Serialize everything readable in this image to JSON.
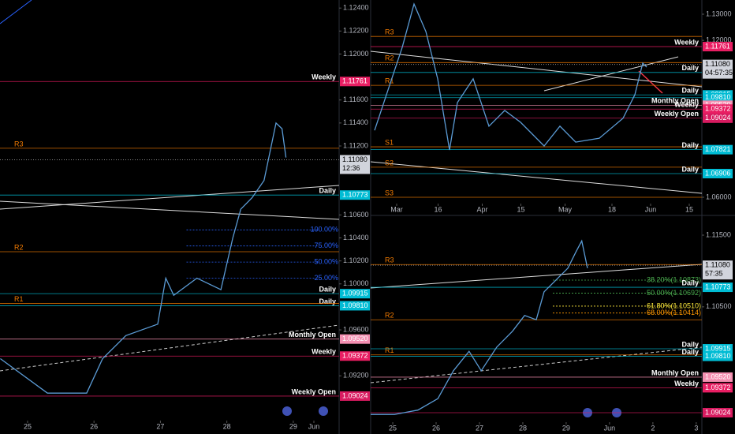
{
  "chart_data": [
    {
      "type": "line",
      "color": "#5b9bd5",
      "x": [
        24.59,
        25.3,
        25.89,
        26.13,
        26.48,
        26.96,
        27.08,
        27.2,
        27.55,
        27.91,
        28.09,
        28.21,
        28.38,
        28.56,
        28.74,
        28.83,
        28.89
      ],
      "values": [
        1.0935,
        1.0905,
        1.0905,
        1.0935,
        1.0955,
        1.0965,
        1.1005,
        1.099,
        1.1005,
        1.0995,
        1.104,
        1.1065,
        1.1075,
        1.109,
        1.114,
        1.1135,
        1.111
      ],
      "xlim": [
        24.585,
        29.69
      ],
      "ylim": [
        1.089,
        1.1247
      ],
      "xticks": [
        25,
        26,
        27,
        28,
        29,
        {
          "value": 29.31,
          "label": "Jun"
        }
      ],
      "yticks": [
        {
          "value": 1.124,
          "label": "1.12400"
        },
        {
          "value": 1.122,
          "label": "1.12200"
        },
        {
          "value": 1.12,
          "label": "1.12000"
        },
        {
          "value": 1.116,
          "label": "1.11600"
        },
        {
          "value": 1.114,
          "label": "1.11400"
        },
        {
          "value": 1.112,
          "label": "1.11200"
        },
        {
          "value": 1.106,
          "label": "1.10600"
        },
        {
          "value": 1.104,
          "label": "1.10400"
        },
        {
          "value": 1.102,
          "label": "1.10200"
        },
        {
          "value": 1.1,
          "label": "1.10000"
        },
        {
          "value": 1.096,
          "label": "1.09600"
        },
        {
          "value": 1.092,
          "label": "1.09200"
        }
      ],
      "levels": [
        {
          "name": "Weekly",
          "price": 1.11761,
          "color": "#e91e63",
          "tag": true
        },
        {
          "name": "R3",
          "price": 1.1118,
          "color": "#f57c00",
          "tag": false
        },
        {
          "name": "Daily",
          "price": 1.10773,
          "color": "#00bcd4",
          "tag": true
        },
        {
          "name": "R2",
          "price": 1.1028,
          "color": "#f57c00",
          "tag": false
        },
        {
          "name": "Daily",
          "price": 1.09915,
          "color": "#00bcd4",
          "tag": true
        },
        {
          "name": "Daily",
          "price": {
            "value": 1.0981,
            "label": "1.09810"
          },
          "color": "#00bcd4",
          "tag": true
        },
        {
          "name": "R1",
          "price": 1.0983,
          "color": "#f57c00",
          "tag": false
        },
        {
          "name": "Monthly Open",
          "price": {
            "value": 1.0952,
            "label": "1.09520"
          },
          "color": "#f48fb1",
          "tag": true
        },
        {
          "name": "Weekly",
          "price": 1.09372,
          "color": "#e91e63",
          "tag": true
        },
        {
          "name": "Weekly Open",
          "price": 1.09024,
          "color": "#d81b60",
          "tag": true
        }
      ],
      "fib_levels": [
        {
          "name": "100.00%",
          "price": 1.1047,
          "color": "#2962ff"
        },
        {
          "name": "75.00%",
          "price": 1.1033,
          "color": "#2962ff"
        },
        {
          "name": "50.00%",
          "price": 1.1019,
          "color": "#2962ff"
        },
        {
          "name": "25.00%",
          "price": 1.1005,
          "color": "#2962ff"
        }
      ],
      "last_price": {
        "value": 1.1108,
        "label": "1.11080"
      },
      "countdown": "12:36"
    },
    {
      "type": "line",
      "color": "#5b9bd5",
      "x": [
        -8,
        -3.71,
        2,
        6.29,
        10.57,
        14.86,
        19.14,
        22,
        27.71,
        33.43,
        39.14,
        44.86,
        53.43,
        59.14,
        64.86,
        73.43,
        82,
        86.29,
        89.14,
        90.57
      ],
      "values": [
        1.0856,
        1.0992,
        1.1173,
        1.1339,
        1.1234,
        1.1053,
        1.0781,
        1.0962,
        1.1053,
        1.0872,
        1.0932,
        1.0887,
        1.0796,
        1.0872,
        1.0811,
        1.0826,
        1.0902,
        1.0992,
        1.1113,
        1.1098
      ],
      "xlim": [
        -9.43,
        110.57
      ],
      "ylim": [
        1.05397,
        1.13543
      ],
      "xticks": [
        {
          "value": 0,
          "label": "Mar"
        },
        {
          "value": 15,
          "label": "16"
        },
        {
          "value": 31,
          "label": "Apr"
        },
        {
          "value": 45,
          "label": "15"
        },
        {
          "value": 61,
          "label": "May"
        },
        {
          "value": 78,
          "label": "18"
        },
        {
          "value": 92,
          "label": "Jun"
        },
        {
          "value": 106,
          "label": "15"
        }
      ],
      "yticks": [
        {
          "value": 1.13,
          "label": "1.13000"
        },
        {
          "value": 1.12,
          "label": "1.12000"
        },
        {
          "value": 1.06,
          "label": "1.06000"
        }
      ],
      "levels": [
        {
          "name": "R3",
          "price": 1.1215,
          "color": "#f57c00",
          "tag": false
        },
        {
          "name": "Weekly",
          "price": 1.11761,
          "color": "#e91e63",
          "tag": true
        },
        {
          "name": "R2",
          "price": 1.1115,
          "color": "#f57c00",
          "tag": false
        },
        {
          "name": "Daily",
          "price": 1.10773,
          "color": "#00bcd4",
          "tag": true
        },
        {
          "name": "R1",
          "price": 1.1028,
          "color": "#f57c00",
          "tag": false
        },
        {
          "name": "Daily",
          "price": 1.09915,
          "color": "#00bcd4",
          "tag": true
        },
        {
          "price": {
            "value": 1.0981,
            "label": "1.09810"
          },
          "color": "#00bcd4",
          "tag": true
        },
        {
          "name": "Monthly Open",
          "price": {
            "value": 1.0952,
            "label": "1.09520"
          },
          "color": "#f48fb1",
          "tag": true
        },
        {
          "name": "Weekly",
          "price": 1.09372,
          "color": "#e91e63",
          "tag": true
        },
        {
          "name": "Weekly Open",
          "price": 1.09024,
          "color": "#d81b60",
          "tag": true
        },
        {
          "name": "S1",
          "price": 1.0793,
          "color": "#f57c00",
          "tag": false
        },
        {
          "name": "Daily",
          "price": 1.07821,
          "color": "#00bcd4",
          "tag": true
        },
        {
          "name": "S2",
          "price": 1.0715,
          "color": "#f57c00",
          "tag": false
        },
        {
          "name": "Daily",
          "price": 1.06906,
          "color": "#00bcd4",
          "tag": true
        },
        {
          "name": "S3",
          "price": 1.06,
          "color": "#f57c00",
          "tag": false
        }
      ],
      "fib_levels": [],
      "last_price": {
        "value": 1.1108,
        "label": "1.11080"
      },
      "countdown": "04:57:35"
    },
    {
      "type": "line",
      "color": "#5b9bd5",
      "x": [
        24.49,
        25.04,
        25.58,
        26.04,
        26.4,
        26.76,
        27.04,
        27.4,
        27.76,
        28.04,
        28.31,
        28.49,
        28.76,
        29.04,
        29.22,
        29.36,
        29.49
      ],
      "values": [
        1.09,
        1.09,
        1.0906,
        1.0922,
        1.0961,
        1.0988,
        1.0961,
        1.0994,
        1.1016,
        1.1038,
        1.1032,
        1.1071,
        1.1087,
        1.1104,
        1.1126,
        1.1142,
        1.1104
      ],
      "xlim": [
        24.49,
        32.13
      ],
      "ylim": [
        1.08837,
        1.11753
      ],
      "xticks": [
        25,
        26,
        27,
        28,
        29,
        {
          "value": 30,
          "label": "Jun"
        },
        {
          "value": 31,
          "label": "2"
        },
        {
          "value": 32,
          "label": "3"
        }
      ],
      "yticks": [
        {
          "value": 1.115,
          "label": "1.11500"
        },
        {
          "value": 1.105,
          "label": "1.10500"
        }
      ],
      "levels": [
        {
          "name": "R3",
          "price": 1.1109,
          "color": "#f57c00",
          "tag": false
        },
        {
          "name": "Daily",
          "price": 1.10773,
          "color": "#00bcd4",
          "tag": true
        },
        {
          "name": "R2",
          "price": 1.1032,
          "color": "#f57c00",
          "tag": false
        },
        {
          "name": "R1",
          "price": 1.0983,
          "color": "#f57c00",
          "tag": false
        },
        {
          "name": "Daily",
          "price": 1.09915,
          "color": "#00bcd4",
          "tag": true
        },
        {
          "name": "Daily",
          "price": {
            "value": 1.0981,
            "label": "1.09810"
          },
          "color": "#00bcd4",
          "tag": true
        },
        {
          "name": "Monthly Open",
          "price": {
            "value": 1.0952,
            "label": "1.09520"
          },
          "color": "#f48fb1",
          "tag": true
        },
        {
          "name": "Weekly",
          "price": 1.09372,
          "color": "#e91e63",
          "tag": true
        },
        {
          "price": 1.09024,
          "color": "#d81b60",
          "tag": true
        }
      ],
      "fib_levels": [
        {
          "name": "38.20%(1.10873)",
          "price": 1.10873,
          "color": "#4caf50"
        },
        {
          "name": "50.00%(1.10692)",
          "price": 1.10692,
          "color": "#4caf50"
        },
        {
          "name": "61.80%(1.10510)",
          "price": 1.1051,
          "color": "#ffeb3b"
        },
        {
          "name": "68.00%(1.10414)",
          "price": 1.10414,
          "color": "#ff9800"
        }
      ],
      "last_price": {
        "value": 1.1108,
        "label": "1.11080"
      },
      "countdown": "57:35"
    }
  ]
}
